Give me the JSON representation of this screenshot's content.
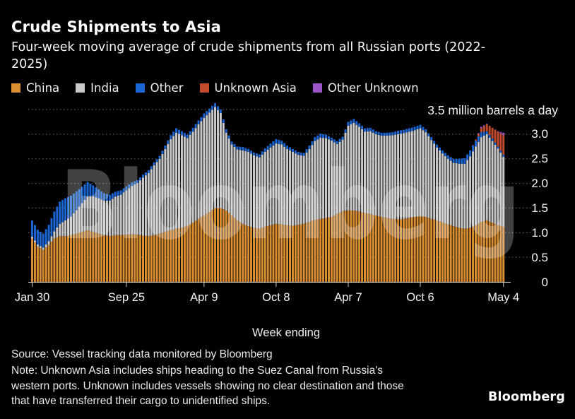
{
  "header": {
    "title": "Crude Shipments to Asia",
    "subtitle": "Four-week moving average of crude shipments from all Russian ports (2022-2025)"
  },
  "legend": [
    {
      "label": "China",
      "color": "#D98E32"
    },
    {
      "label": "India",
      "color": "#C9C9C9"
    },
    {
      "label": "Other",
      "color": "#1A66D2"
    },
    {
      "label": "Unknown Asia",
      "color": "#C14B2C"
    },
    {
      "label": "Other Unknown",
      "color": "#9A57C5"
    }
  ],
  "watermark": {
    "text": "Bloomberg"
  },
  "chart_data": {
    "type": "bar",
    "stacked": true,
    "bar_interval": "weekly",
    "title": "Crude Shipments to Asia",
    "xlabel": "Week ending",
    "ylabel": "million barrels a day",
    "y_axis_top_label": "3.5 million barrels a day",
    "ylim": [
      0,
      3.5
    ],
    "grid": "dotted horizontal",
    "legend_position": "top",
    "y_ticks": [
      {
        "value": 3.0,
        "label": "3.0"
      },
      {
        "value": 2.5,
        "label": "2.5"
      },
      {
        "value": 2.0,
        "label": "2.0"
      },
      {
        "value": 1.5,
        "label": "1.5"
      },
      {
        "value": 1.0,
        "label": "1.0"
      },
      {
        "value": 0.5,
        "label": "0.5"
      },
      {
        "value": 0.0,
        "label": "0"
      }
    ],
    "x_ticks": [
      {
        "label": "Jan 30",
        "week": 0
      },
      {
        "label": "Sep 25",
        "week": 34
      },
      {
        "label": "Apr 9",
        "week": 62
      },
      {
        "label": "Oct 8",
        "week": 88
      },
      {
        "label": "Apr 7",
        "week": 114
      },
      {
        "label": "Oct 6",
        "week": 140
      },
      {
        "label": "May 4",
        "week": 170
      }
    ],
    "series_order": [
      "China",
      "India",
      "Other",
      "Unknown Asia",
      "Other Unknown"
    ],
    "series_colors": {
      "China": "#D98E32",
      "India": "#C9C9C9",
      "Other": "#1A66D2",
      "Unknown Asia": "#C14B2C",
      "Other Unknown": "#9A57C5"
    },
    "weeks_total": 170,
    "anchors_header": [
      "week_index",
      "China",
      "India",
      "Other",
      "Unknown Asia",
      "Other Unknown"
    ],
    "anchors": [
      [
        0,
        0.88,
        0.04,
        0.33,
        0,
        0
      ],
      [
        2,
        0.72,
        0.04,
        0.3,
        0,
        0
      ],
      [
        4,
        0.65,
        0.05,
        0.28,
        0,
        0
      ],
      [
        6,
        0.75,
        0.08,
        0.33,
        0,
        0
      ],
      [
        8,
        0.88,
        0.15,
        0.4,
        0,
        0
      ],
      [
        10,
        0.93,
        0.25,
        0.45,
        0,
        0
      ],
      [
        12,
        0.93,
        0.32,
        0.45,
        0,
        0
      ],
      [
        14,
        0.95,
        0.38,
        0.42,
        0,
        0
      ],
      [
        16,
        0.98,
        0.48,
        0.38,
        0,
        0
      ],
      [
        18,
        1.02,
        0.58,
        0.33,
        0,
        0
      ],
      [
        20,
        1.05,
        0.68,
        0.3,
        0,
        0
      ],
      [
        22,
        1.02,
        0.72,
        0.22,
        0,
        0
      ],
      [
        24,
        0.98,
        0.72,
        0.18,
        0,
        0
      ],
      [
        26,
        0.95,
        0.7,
        0.15,
        0,
        0
      ],
      [
        28,
        0.93,
        0.72,
        0.12,
        0,
        0
      ],
      [
        30,
        0.95,
        0.78,
        0.1,
        0,
        0
      ],
      [
        32,
        0.95,
        0.82,
        0.09,
        0,
        0
      ],
      [
        34,
        0.96,
        0.9,
        0.08,
        0,
        0
      ],
      [
        36,
        0.97,
        0.98,
        0.07,
        0,
        0
      ],
      [
        38,
        0.96,
        1.05,
        0.06,
        0,
        0
      ],
      [
        40,
        0.94,
        1.18,
        0.06,
        0,
        0
      ],
      [
        42,
        0.93,
        1.28,
        0.06,
        0,
        0
      ],
      [
        44,
        0.95,
        1.42,
        0.06,
        0,
        0
      ],
      [
        46,
        0.98,
        1.52,
        0.06,
        0,
        0
      ],
      [
        48,
        1.02,
        1.68,
        0.07,
        0,
        0
      ],
      [
        50,
        1.05,
        1.85,
        0.08,
        0,
        0
      ],
      [
        52,
        1.08,
        1.95,
        0.09,
        0,
        0
      ],
      [
        54,
        1.1,
        1.88,
        0.08,
        0,
        0
      ],
      [
        56,
        1.14,
        1.78,
        0.07,
        0,
        0
      ],
      [
        58,
        1.2,
        1.85,
        0.08,
        0,
        0
      ],
      [
        60,
        1.28,
        1.92,
        0.08,
        0,
        0
      ],
      [
        62,
        1.35,
        1.98,
        0.09,
        0,
        0
      ],
      [
        64,
        1.42,
        2.02,
        0.08,
        0,
        0
      ],
      [
        66,
        1.5,
        2.05,
        0.08,
        0,
        0
      ],
      [
        68,
        1.5,
        1.93,
        0.07,
        0,
        0
      ],
      [
        70,
        1.45,
        1.58,
        0.07,
        0,
        0
      ],
      [
        72,
        1.35,
        1.44,
        0.06,
        0,
        0
      ],
      [
        74,
        1.25,
        1.44,
        0.06,
        0,
        0
      ],
      [
        76,
        1.18,
        1.49,
        0.07,
        0,
        0
      ],
      [
        78,
        1.13,
        1.51,
        0.06,
        0,
        0
      ],
      [
        80,
        1.1,
        1.47,
        0.06,
        0,
        0
      ],
      [
        82,
        1.08,
        1.45,
        0.06,
        0,
        0
      ],
      [
        84,
        1.12,
        1.52,
        0.07,
        0,
        0
      ],
      [
        86,
        1.15,
        1.58,
        0.08,
        0,
        0
      ],
      [
        88,
        1.18,
        1.63,
        0.09,
        0,
        0
      ],
      [
        90,
        1.17,
        1.62,
        0.08,
        0,
        0
      ],
      [
        92,
        1.15,
        1.55,
        0.07,
        0,
        0
      ],
      [
        94,
        1.14,
        1.5,
        0.06,
        0,
        0
      ],
      [
        96,
        1.16,
        1.42,
        0.06,
        0,
        0
      ],
      [
        98,
        1.18,
        1.38,
        0.06,
        0,
        0
      ],
      [
        100,
        1.22,
        1.48,
        0.07,
        0,
        0
      ],
      [
        102,
        1.26,
        1.6,
        0.08,
        0,
        0
      ],
      [
        104,
        1.28,
        1.65,
        0.08,
        0,
        0
      ],
      [
        106,
        1.3,
        1.62,
        0.07,
        0,
        0
      ],
      [
        108,
        1.32,
        1.55,
        0.06,
        0,
        0
      ],
      [
        110,
        1.38,
        1.42,
        0.06,
        0,
        0
      ],
      [
        112,
        1.44,
        1.45,
        0.06,
        0,
        0
      ],
      [
        114,
        1.45,
        1.72,
        0.08,
        0,
        0
      ],
      [
        116,
        1.45,
        1.78,
        0.08,
        0,
        0
      ],
      [
        118,
        1.43,
        1.72,
        0.07,
        0,
        0
      ],
      [
        120,
        1.4,
        1.65,
        0.07,
        0,
        0
      ],
      [
        122,
        1.38,
        1.68,
        0.07,
        0,
        0
      ],
      [
        124,
        1.35,
        1.65,
        0.06,
        0,
        0
      ],
      [
        126,
        1.32,
        1.65,
        0.06,
        0,
        0
      ],
      [
        128,
        1.3,
        1.67,
        0.06,
        0,
        0
      ],
      [
        130,
        1.28,
        1.7,
        0.06,
        0,
        0
      ],
      [
        132,
        1.27,
        1.73,
        0.07,
        0,
        0
      ],
      [
        134,
        1.28,
        1.74,
        0.07,
        0,
        0
      ],
      [
        136,
        1.3,
        1.75,
        0.07,
        0,
        0
      ],
      [
        138,
        1.32,
        1.76,
        0.07,
        0,
        0
      ],
      [
        140,
        1.34,
        1.78,
        0.07,
        0,
        0
      ],
      [
        142,
        1.32,
        1.72,
        0.06,
        0,
        0
      ],
      [
        144,
        1.28,
        1.6,
        0.06,
        0,
        0
      ],
      [
        146,
        1.25,
        1.48,
        0.06,
        0,
        0
      ],
      [
        148,
        1.21,
        1.4,
        0.06,
        0,
        0
      ],
      [
        150,
        1.17,
        1.33,
        0.07,
        0,
        0
      ],
      [
        152,
        1.13,
        1.29,
        0.08,
        0,
        0
      ],
      [
        154,
        1.1,
        1.3,
        0.1,
        0,
        0
      ],
      [
        156,
        1.08,
        1.32,
        0.11,
        0,
        0
      ],
      [
        158,
        1.1,
        1.45,
        0.12,
        0,
        0
      ],
      [
        160,
        1.15,
        1.6,
        0.12,
        0.02,
        0
      ],
      [
        162,
        1.22,
        1.72,
        0.1,
        0.08,
        0.03
      ],
      [
        164,
        1.25,
        1.75,
        0.06,
        0.14,
        0.01
      ],
      [
        166,
        1.2,
        1.66,
        0.05,
        0.22,
        0
      ],
      [
        168,
        1.15,
        1.56,
        0.04,
        0.3,
        0.01
      ],
      [
        170,
        1.12,
        1.42,
        0.04,
        0.4,
        0.05
      ]
    ]
  },
  "footer": {
    "source": "Source: Vessel tracking data monitored by Bloomberg",
    "note": "Note: Unknown Asia includes ships heading to the Suez Canal from Russia's western ports. Unknown includes vessels showing no clear destination and those that have transferred their cargo to unidentified ships.",
    "logo": "Bloomberg"
  }
}
